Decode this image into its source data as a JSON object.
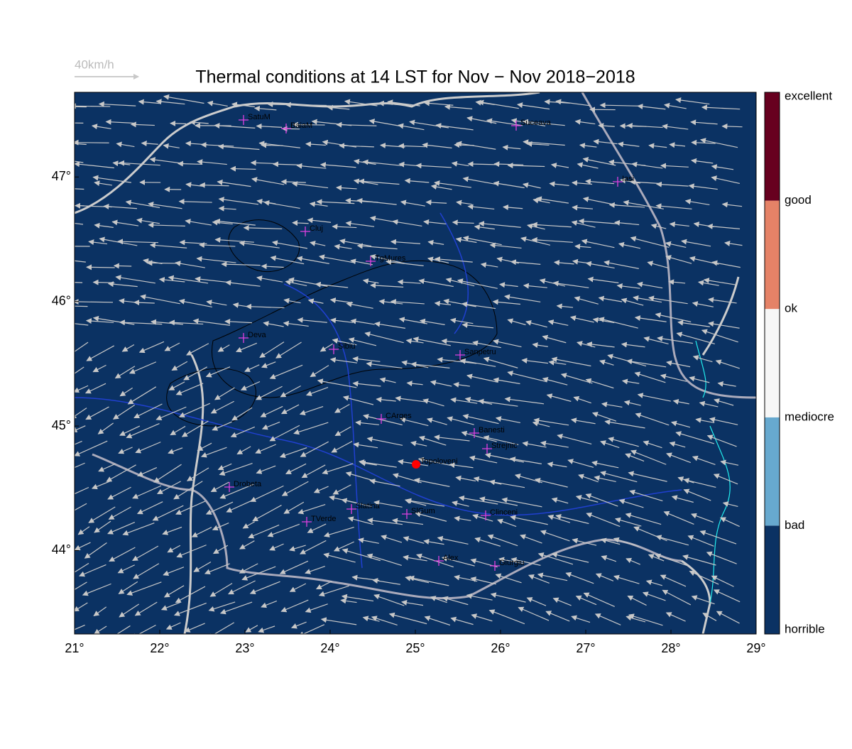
{
  "map": {
    "title": "Thermal conditions at 14 LST for Nov − Nov  2018−2018",
    "wind_scale_label": "40km/h",
    "xlim": [
      21,
      29
    ],
    "xticks": [
      {
        "value": 21,
        "label": "21°"
      },
      {
        "value": 22,
        "label": "22°"
      },
      {
        "value": 23,
        "label": "23°"
      },
      {
        "value": 24,
        "label": "24°"
      },
      {
        "value": 25,
        "label": "25°"
      },
      {
        "value": 26,
        "label": "26°"
      },
      {
        "value": 27,
        "label": "27°"
      },
      {
        "value": 28,
        "label": "28°"
      },
      {
        "value": 29,
        "label": "29°"
      }
    ],
    "ylim": [
      43.33,
      47.68
    ],
    "yticks": [
      {
        "value": 44,
        "label": "44°"
      },
      {
        "value": 45,
        "label": "45°"
      },
      {
        "value": 46,
        "label": "46°"
      },
      {
        "value": 47,
        "label": "47°"
      }
    ],
    "background_color": "#0b3263",
    "colorbar": {
      "labels": [
        "horrible",
        "bad",
        "mediocre",
        "ok",
        "good",
        "excellent"
      ],
      "colors": [
        "#0b3263",
        "#67a9cf",
        "#f7f7f7",
        "#e58267",
        "#67001f"
      ]
    },
    "cities": [
      "SatuM",
      "BaiaM",
      "Suceava",
      "Iasi",
      "Cluj",
      "TgMures",
      "Deva",
      "Sibiu",
      "Sanpetru",
      "CArges",
      "Banesti",
      "Strejnic",
      "Topoloveni",
      "Drobeta",
      "Slatina",
      "SlGum",
      "Clinceni",
      "TVerde",
      "Alex",
      "Giurgiu"
    ]
  }
}
